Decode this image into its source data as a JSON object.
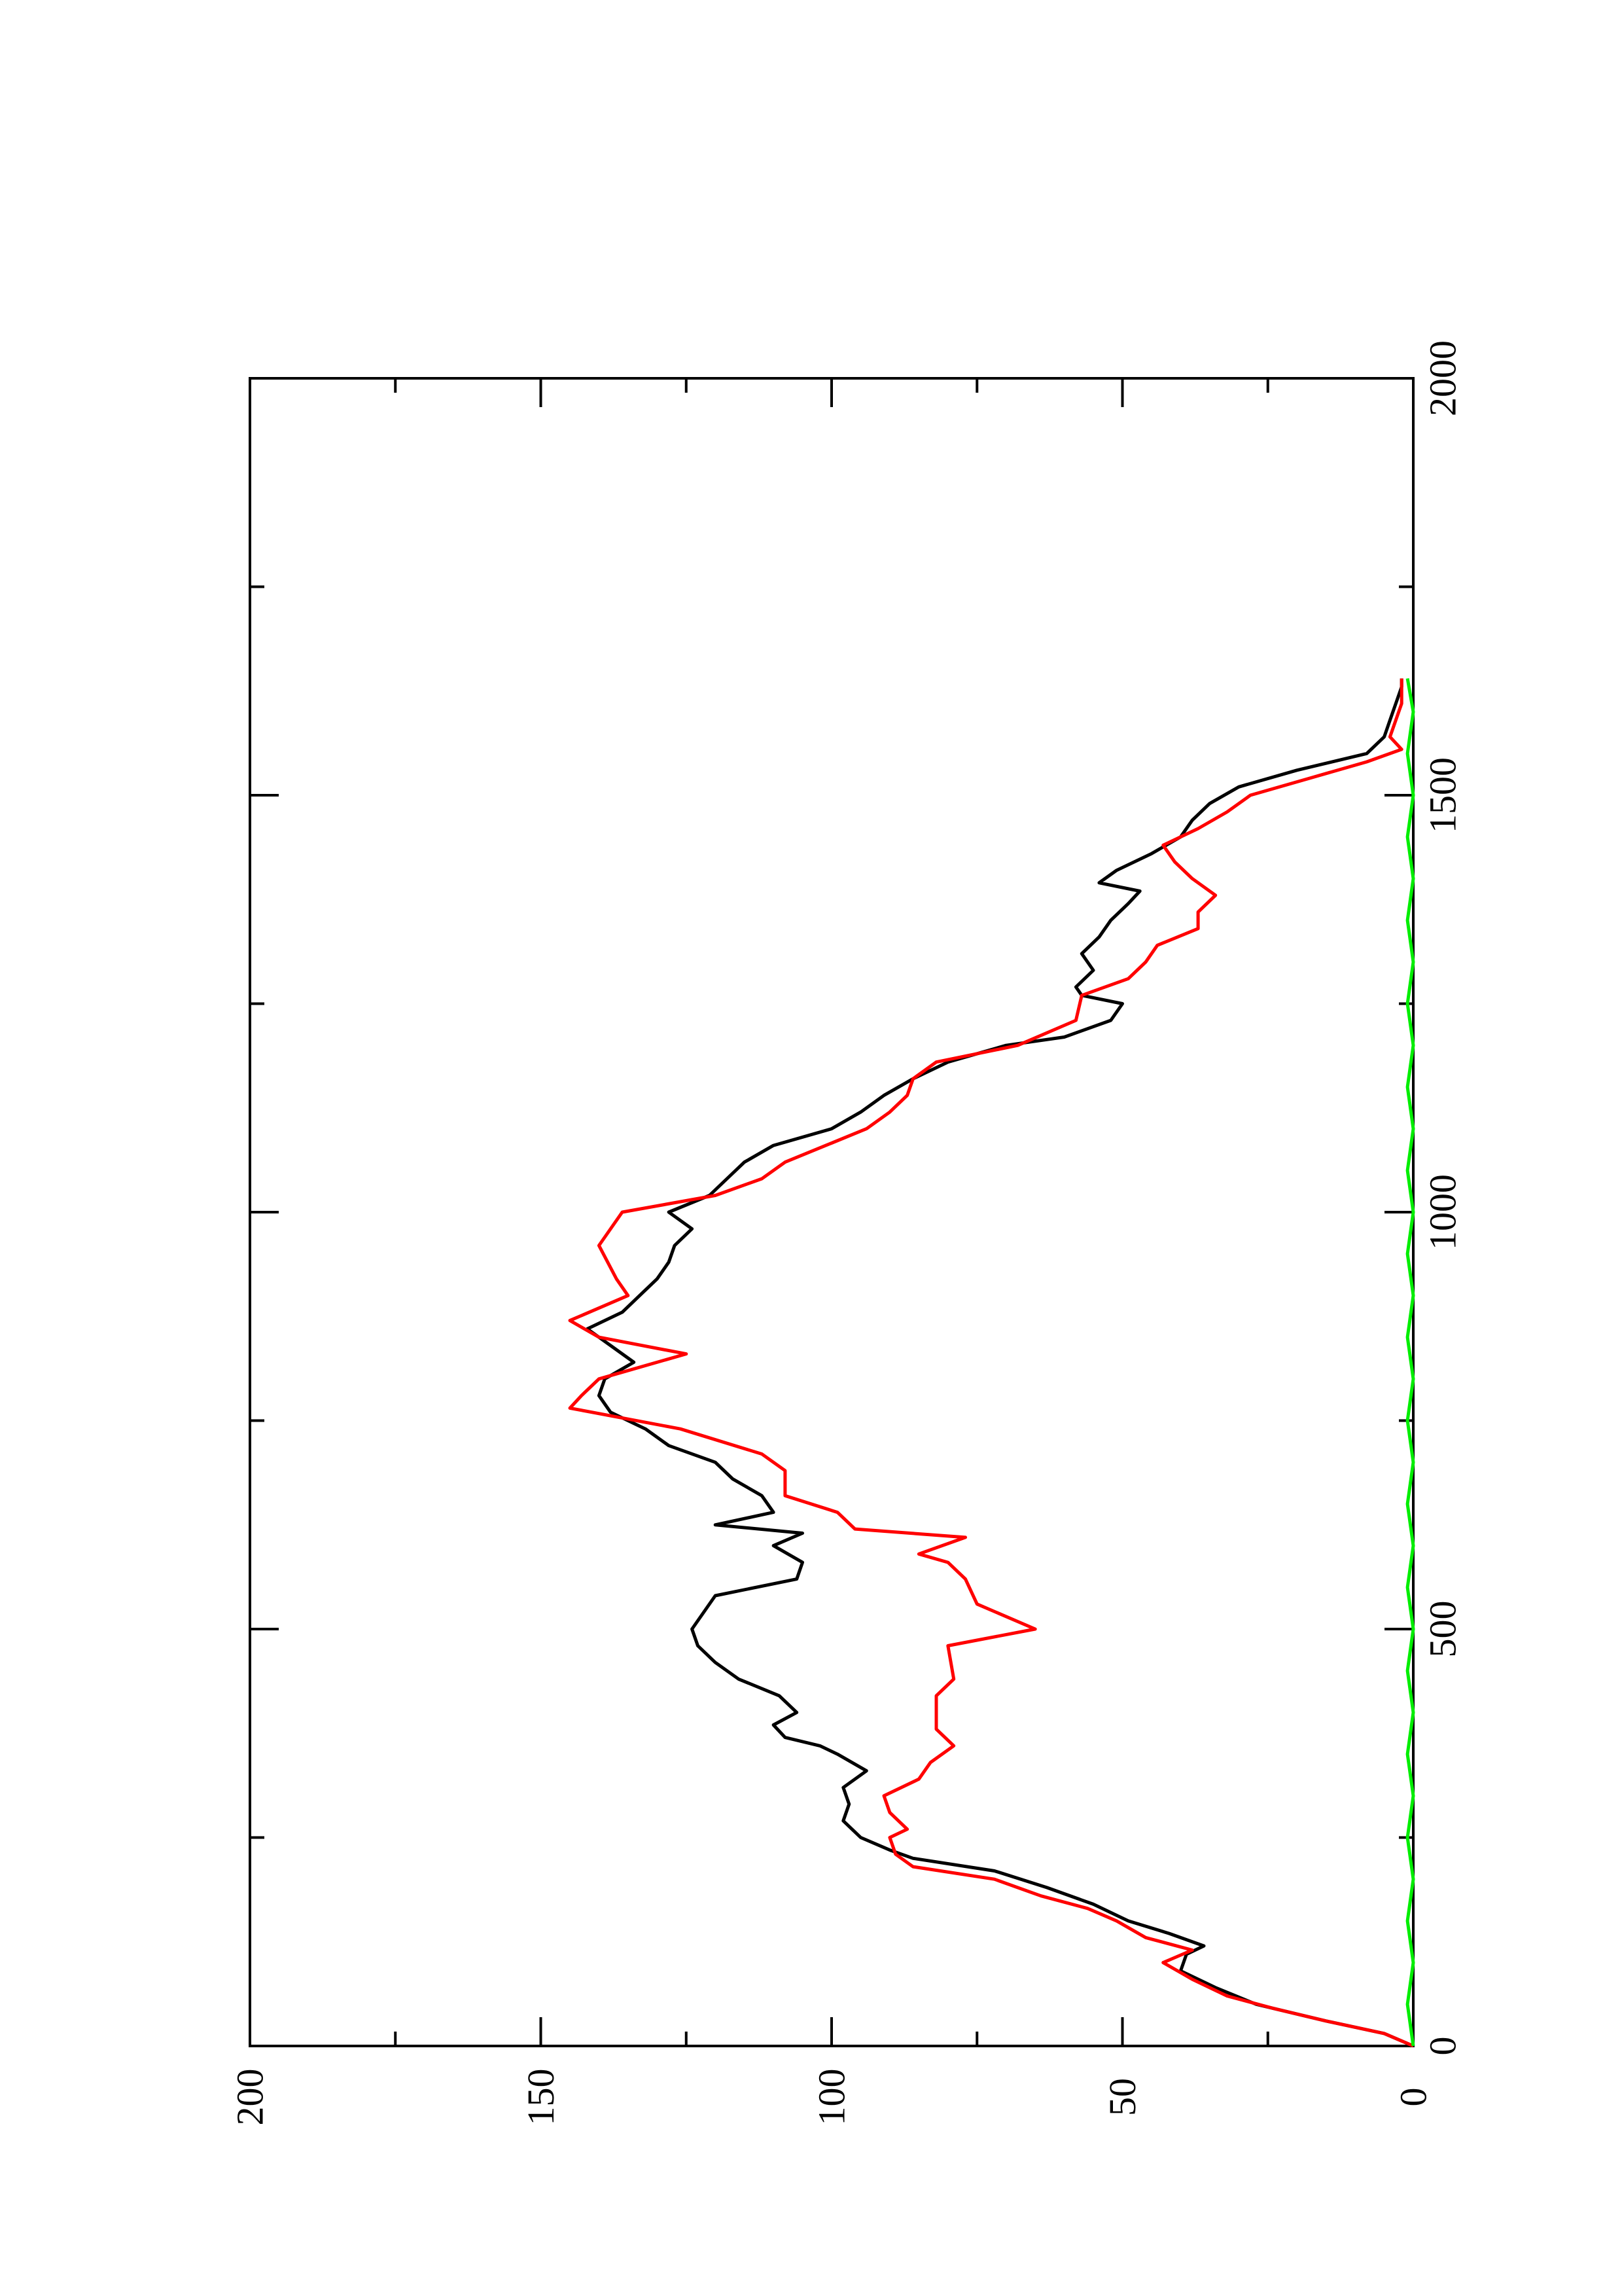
{
  "chart_data": {
    "type": "line",
    "title": "",
    "xlabel": "",
    "ylabel": "",
    "orientation": "rotated-90-counterclockwise",
    "xlim": [
      0,
      2000
    ],
    "ylim": [
      0,
      200
    ],
    "x_ticks": [
      0,
      500,
      1000,
      1500,
      2000
    ],
    "x_tick_labels": [
      "0",
      "500",
      "1000",
      "1500",
      "2000"
    ],
    "y_ticks": [
      0,
      50,
      100,
      150,
      200
    ],
    "y_tick_labels": [
      "0",
      "50",
      "100",
      "150",
      "200"
    ],
    "grid": false,
    "legend": "none",
    "series": [
      {
        "color": "#000000",
        "points": [
          [
            0,
            0
          ],
          [
            15,
            5
          ],
          [
            30,
            15
          ],
          [
            50,
            27
          ],
          [
            70,
            34
          ],
          [
            90,
            40
          ],
          [
            110,
            39
          ],
          [
            120,
            36
          ],
          [
            135,
            42
          ],
          [
            150,
            49
          ],
          [
            170,
            55
          ],
          [
            190,
            63
          ],
          [
            210,
            72
          ],
          [
            225,
            86
          ],
          [
            235,
            90
          ],
          [
            250,
            95
          ],
          [
            270,
            98
          ],
          [
            290,
            97
          ],
          [
            310,
            98
          ],
          [
            330,
            94
          ],
          [
            350,
            99
          ],
          [
            360,
            102
          ],
          [
            370,
            108
          ],
          [
            385,
            110
          ],
          [
            400,
            106
          ],
          [
            420,
            109
          ],
          [
            440,
            116
          ],
          [
            460,
            120
          ],
          [
            480,
            123
          ],
          [
            500,
            124
          ],
          [
            520,
            122
          ],
          [
            540,
            120
          ],
          [
            560,
            106
          ],
          [
            580,
            105
          ],
          [
            600,
            110
          ],
          [
            615,
            105
          ],
          [
            625,
            120
          ],
          [
            640,
            110
          ],
          [
            660,
            112
          ],
          [
            680,
            117
          ],
          [
            700,
            120
          ],
          [
            720,
            128
          ],
          [
            740,
            132
          ],
          [
            760,
            138
          ],
          [
            780,
            140
          ],
          [
            800,
            139
          ],
          [
            820,
            134
          ],
          [
            840,
            138
          ],
          [
            860,
            142
          ],
          [
            880,
            136
          ],
          [
            900,
            133
          ],
          [
            920,
            130
          ],
          [
            940,
            128
          ],
          [
            960,
            127
          ],
          [
            980,
            124
          ],
          [
            1000,
            128
          ],
          [
            1020,
            121
          ],
          [
            1040,
            118
          ],
          [
            1060,
            115
          ],
          [
            1080,
            110
          ],
          [
            1100,
            100
          ],
          [
            1120,
            95
          ],
          [
            1140,
            91
          ],
          [
            1160,
            86
          ],
          [
            1180,
            80
          ],
          [
            1200,
            70
          ],
          [
            1210,
            60
          ],
          [
            1230,
            52
          ],
          [
            1250,
            50
          ],
          [
            1260,
            57
          ],
          [
            1270,
            58
          ],
          [
            1290,
            55
          ],
          [
            1310,
            57
          ],
          [
            1330,
            54
          ],
          [
            1350,
            52
          ],
          [
            1370,
            49
          ],
          [
            1385,
            47
          ],
          [
            1395,
            54
          ],
          [
            1410,
            51
          ],
          [
            1430,
            45
          ],
          [
            1450,
            40
          ],
          [
            1470,
            38
          ],
          [
            1490,
            35
          ],
          [
            1510,
            30
          ],
          [
            1530,
            20
          ],
          [
            1550,
            8
          ],
          [
            1570,
            5
          ],
          [
            1590,
            4
          ],
          [
            1610,
            3
          ],
          [
            1630,
            2
          ],
          [
            1640,
            2
          ]
        ]
      },
      {
        "color": "#ff0000",
        "points": [
          [
            0,
            0
          ],
          [
            15,
            5
          ],
          [
            30,
            15
          ],
          [
            45,
            24
          ],
          [
            60,
            32
          ],
          [
            80,
            38
          ],
          [
            100,
            43
          ],
          [
            115,
            38
          ],
          [
            130,
            46
          ],
          [
            150,
            51
          ],
          [
            165,
            56
          ],
          [
            180,
            64
          ],
          [
            200,
            72
          ],
          [
            215,
            86
          ],
          [
            230,
            89
          ],
          [
            250,
            90
          ],
          [
            260,
            87
          ],
          [
            280,
            90
          ],
          [
            300,
            91
          ],
          [
            320,
            85
          ],
          [
            340,
            83
          ],
          [
            360,
            79
          ],
          [
            380,
            82
          ],
          [
            420,
            82
          ],
          [
            440,
            79
          ],
          [
            480,
            80
          ],
          [
            500,
            65
          ],
          [
            530,
            75
          ],
          [
            560,
            77
          ],
          [
            580,
            80
          ],
          [
            590,
            85
          ],
          [
            610,
            77
          ],
          [
            620,
            96
          ],
          [
            640,
            99
          ],
          [
            660,
            108
          ],
          [
            690,
            108
          ],
          [
            710,
            112
          ],
          [
            740,
            126
          ],
          [
            765,
            145
          ],
          [
            780,
            143
          ],
          [
            800,
            140
          ],
          [
            830,
            125
          ],
          [
            850,
            140
          ],
          [
            870,
            145
          ],
          [
            900,
            135
          ],
          [
            920,
            137
          ],
          [
            960,
            140
          ],
          [
            1000,
            136
          ],
          [
            1020,
            120
          ],
          [
            1040,
            112
          ],
          [
            1060,
            108
          ],
          [
            1080,
            101
          ],
          [
            1100,
            94
          ],
          [
            1120,
            90
          ],
          [
            1140,
            87
          ],
          [
            1160,
            86
          ],
          [
            1180,
            82
          ],
          [
            1200,
            68
          ],
          [
            1230,
            58
          ],
          [
            1260,
            57
          ],
          [
            1280,
            49
          ],
          [
            1300,
            46
          ],
          [
            1320,
            44
          ],
          [
            1340,
            37
          ],
          [
            1360,
            37
          ],
          [
            1380,
            34
          ],
          [
            1400,
            38
          ],
          [
            1420,
            41
          ],
          [
            1440,
            43
          ],
          [
            1460,
            37
          ],
          [
            1480,
            32
          ],
          [
            1500,
            28
          ],
          [
            1520,
            18
          ],
          [
            1540,
            8
          ],
          [
            1555,
            2
          ],
          [
            1570,
            4
          ],
          [
            1590,
            3
          ],
          [
            1610,
            2
          ],
          [
            1640,
            2
          ]
        ]
      },
      {
        "color": "#00ee00",
        "points": [
          [
            0,
            0
          ],
          [
            50,
            1
          ],
          [
            100,
            0
          ],
          [
            150,
            1
          ],
          [
            200,
            0
          ],
          [
            250,
            1
          ],
          [
            300,
            0
          ],
          [
            350,
            1
          ],
          [
            400,
            0
          ],
          [
            450,
            1
          ],
          [
            500,
            0
          ],
          [
            550,
            1
          ],
          [
            600,
            0
          ],
          [
            650,
            1
          ],
          [
            700,
            0
          ],
          [
            750,
            1
          ],
          [
            800,
            0
          ],
          [
            850,
            1
          ],
          [
            900,
            0
          ],
          [
            950,
            1
          ],
          [
            1000,
            0
          ],
          [
            1050,
            1
          ],
          [
            1100,
            0
          ],
          [
            1150,
            1
          ],
          [
            1200,
            0
          ],
          [
            1250,
            1
          ],
          [
            1300,
            0
          ],
          [
            1350,
            1
          ],
          [
            1400,
            0
          ],
          [
            1450,
            1
          ],
          [
            1500,
            0
          ],
          [
            1550,
            1
          ],
          [
            1600,
            0
          ],
          [
            1640,
            1
          ]
        ]
      }
    ]
  }
}
